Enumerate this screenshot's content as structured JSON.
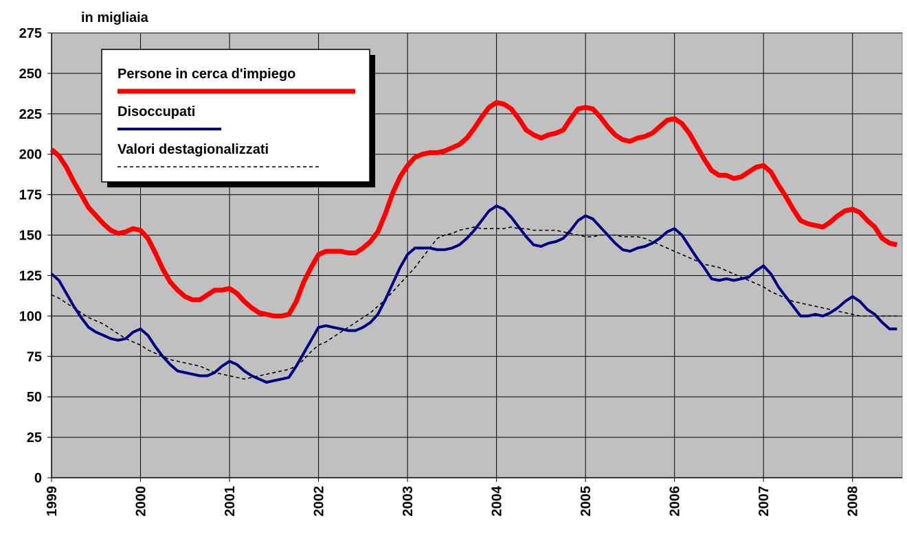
{
  "chart_data": {
    "type": "line",
    "y_axis_label": "in migliaia",
    "categories": [
      "1999",
      null,
      null,
      null,
      null,
      null,
      null,
      null,
      null,
      null,
      null,
      null,
      "2000",
      null,
      null,
      null,
      null,
      null,
      null,
      null,
      null,
      null,
      null,
      null,
      "2001",
      null,
      null,
      null,
      null,
      null,
      null,
      null,
      null,
      null,
      null,
      null,
      "2002",
      null,
      null,
      null,
      null,
      null,
      null,
      null,
      null,
      null,
      null,
      null,
      "2003",
      null,
      null,
      null,
      null,
      null,
      null,
      null,
      null,
      null,
      null,
      null,
      "2004",
      null,
      null,
      null,
      null,
      null,
      null,
      null,
      null,
      null,
      null,
      null,
      "2005",
      null,
      null,
      null,
      null,
      null,
      null,
      null,
      null,
      null,
      null,
      null,
      "2006",
      null,
      null,
      null,
      null,
      null,
      null,
      null,
      null,
      null,
      null,
      null,
      "2007",
      null,
      null,
      null,
      null,
      null,
      null,
      null,
      null,
      null,
      null,
      null,
      "2008",
      null,
      null,
      null,
      null,
      null,
      null
    ],
    "series": [
      {
        "name": "Persone in cerca d'impiego",
        "color": "#ff0000",
        "line_style": "solid",
        "values": [
          203,
          199,
          192,
          183,
          175,
          167,
          162,
          157,
          153,
          151,
          152,
          154,
          153,
          148,
          139,
          129,
          121,
          116,
          112,
          110,
          110,
          113,
          116,
          116,
          117,
          114,
          109,
          105,
          102,
          101,
          100,
          100,
          101,
          109,
          121,
          130,
          138,
          140,
          140,
          140,
          139,
          139,
          142,
          146,
          152,
          163,
          176,
          186,
          193,
          198,
          200,
          201,
          201,
          202,
          204,
          206,
          210,
          216,
          223,
          229,
          232,
          231,
          228,
          222,
          215,
          212,
          210,
          212,
          213,
          215,
          222,
          228,
          229,
          228,
          223,
          217,
          212,
          209,
          208,
          210,
          211,
          213,
          217,
          221,
          222,
          219,
          213,
          205,
          197,
          190,
          187,
          187,
          185,
          186,
          189,
          192,
          193,
          189,
          181,
          174,
          166,
          159,
          157,
          156,
          155,
          158,
          162,
          165,
          166,
          164,
          159,
          155,
          148,
          145,
          144
        ]
      },
      {
        "name": "Disoccupati",
        "color": "#000080",
        "line_style": "solid",
        "values": [
          126,
          122,
          114,
          106,
          99,
          93,
          90,
          88,
          86,
          85,
          86,
          90,
          92,
          88,
          81,
          75,
          70,
          66,
          65,
          64,
          63,
          63,
          65,
          69,
          72,
          70,
          66,
          63,
          61,
          59,
          60,
          61,
          62,
          69,
          77,
          85,
          93,
          94,
          93,
          92,
          91,
          91,
          93,
          96,
          101,
          110,
          120,
          130,
          138,
          142,
          142,
          142,
          141,
          141,
          142,
          144,
          148,
          153,
          159,
          165,
          168,
          166,
          161,
          155,
          149,
          144,
          143,
          145,
          146,
          148,
          153,
          159,
          162,
          160,
          155,
          150,
          145,
          141,
          140,
          142,
          143,
          145,
          148,
          152,
          154,
          150,
          143,
          136,
          130,
          123,
          122,
          123,
          122,
          123,
          124,
          128,
          131,
          126,
          118,
          112,
          106,
          100,
          100,
          101,
          100,
          102,
          105,
          109,
          112,
          109,
          104,
          101,
          96,
          92,
          92
        ]
      },
      {
        "name": "Valori destagionalizzati",
        "color": "#000000",
        "line_style": "dashed",
        "values": [
          113,
          111,
          108,
          105,
          102,
          99,
          97,
          95,
          92,
          89,
          86,
          84,
          82,
          79,
          77,
          75,
          73,
          72,
          71,
          70,
          69,
          67,
          65,
          64,
          63,
          62,
          61,
          62,
          63,
          64,
          65,
          66,
          67,
          69,
          73,
          78,
          82,
          84,
          87,
          90,
          93,
          96,
          99,
          102,
          106,
          110,
          115,
          120,
          125,
          130,
          136,
          142,
          148,
          150,
          151,
          153,
          154,
          155,
          154,
          154,
          154,
          154,
          155,
          154,
          154,
          153,
          153,
          153,
          153,
          152,
          151,
          150,
          149,
          149,
          150,
          150,
          150,
          149,
          149,
          149,
          148,
          146,
          144,
          142,
          140,
          138,
          136,
          134,
          132,
          131,
          130,
          128,
          126,
          124,
          122,
          120,
          118,
          115,
          113,
          111,
          109,
          108,
          107,
          106,
          105,
          104,
          103,
          102,
          101,
          100,
          100,
          100,
          100,
          100,
          100
        ]
      }
    ],
    "ylim": [
      0,
      275
    ],
    "yticks": [
      0,
      25,
      50,
      75,
      100,
      125,
      150,
      175,
      200,
      225,
      250,
      275
    ],
    "grid": true,
    "legend": "upper left",
    "background": "#c0c0c0"
  }
}
